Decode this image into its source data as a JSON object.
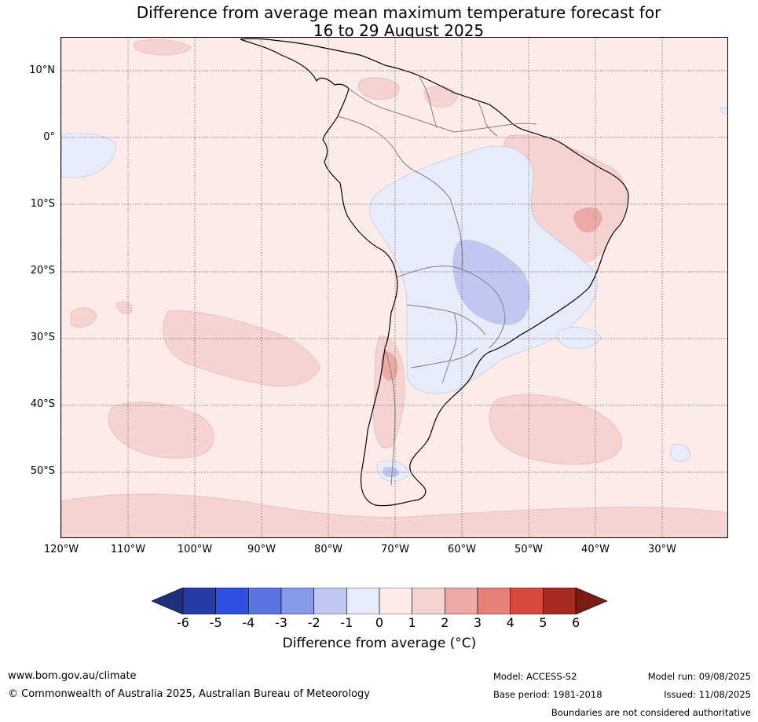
{
  "title_line1": "Difference from average mean maximum temperature forecast for",
  "title_line2": "16 to 29 August 2025",
  "lat_labels": [
    "10°N",
    "0°",
    "10°S",
    "20°S",
    "30°S",
    "40°S",
    "50°S"
  ],
  "lon_labels": [
    "120°W",
    "110°W",
    "100°W",
    "90°W",
    "80°W",
    "70°W",
    "60°W",
    "50°W",
    "40°W",
    "30°W"
  ],
  "colorbar": {
    "ticks": [
      "-6",
      "-5",
      "-4",
      "-3",
      "-2",
      "-1",
      "0",
      "1",
      "2",
      "3",
      "4",
      "5",
      "6"
    ],
    "colors": [
      "#263aa8",
      "#2e4fe0",
      "#5b74e4",
      "#8799eb",
      "#c0c8f2",
      "#e8ebfa",
      "#fcebe9",
      "#f5d3d0",
      "#ebaaa6",
      "#e58178",
      "#d9473d",
      "#a82a20"
    ],
    "under_color": "#1e2f7e",
    "over_color": "#7a1c15",
    "title": "Difference from average (°C)"
  },
  "footer": {
    "website": "www.bom.gov.au/climate",
    "copyright": "© Commonwealth of Australia 2025, Australian Bureau of Meteorology",
    "model": "Model: ACCESS-S2",
    "base_period": "Base period: 1981-2018",
    "model_run": "Model run: 09/08/2025",
    "issued": "Issued: 11/08/2025",
    "boundaries_note": "Boundaries are not considered authoritative"
  }
}
